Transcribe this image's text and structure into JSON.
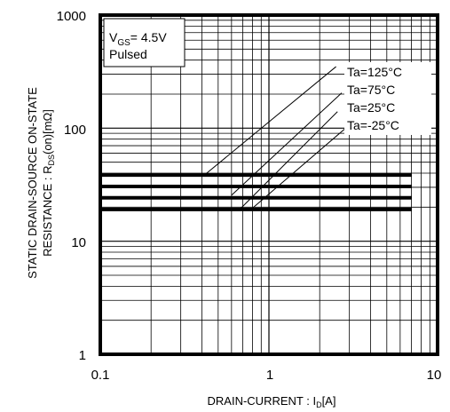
{
  "chart_data": {
    "type": "line",
    "x_scale": "log",
    "y_scale": "log",
    "xlim": [
      0.1,
      10
    ],
    "ylim": [
      1,
      1000
    ],
    "x_ticks": [
      "0.1",
      "1",
      "10"
    ],
    "y_ticks": [
      "1",
      "10",
      "100",
      "1000"
    ],
    "xlabel": "DRAIN-CURRENT : I",
    "xlabel_sub": "D",
    "xlabel_unit": "[A]",
    "ylabel_line1": "STATIC DRAIN-SOURCE ON-STATE",
    "ylabel_line2_pre": "RESISTANCE : R",
    "ylabel_line2_sub": "DS",
    "ylabel_line2_post": "(on)[mΩ]",
    "condition_line1_pre": "V",
    "condition_line1_sub": "GS",
    "condition_line1_post": "= 4.5V",
    "condition_line2": "Pulsed",
    "grid": true,
    "series": [
      {
        "name": "Ta=125°C",
        "x": [
          0.1,
          7
        ],
        "y": [
          38.5,
          38.5
        ]
      },
      {
        "name": "Ta=75°C",
        "x": [
          0.1,
          7
        ],
        "y": [
          30.5,
          30.5
        ]
      },
      {
        "name": "Ta=25°C",
        "x": [
          0.1,
          7
        ],
        "y": [
          24.2,
          24.2
        ]
      },
      {
        "name": "Ta=-25°C",
        "x": [
          0.1,
          7
        ],
        "y": [
          19.1,
          19.1
        ]
      }
    ],
    "leader_lines": [
      {
        "label": "Ta=125°C",
        "from": [
          0.41,
          38
        ],
        "to": [
          2.5,
          350
        ]
      },
      {
        "label": "Ta=75°C",
        "from": [
          0.6,
          25.5
        ],
        "to": [
          2.7,
          205
        ]
      },
      {
        "label": "Ta=25°C",
        "from": [
          0.68,
          19.5
        ],
        "to": [
          2.55,
          140
        ]
      },
      {
        "label": "Ta=-25°C",
        "from": [
          0.78,
          19
        ],
        "to": [
          2.85,
          100
        ]
      }
    ]
  }
}
